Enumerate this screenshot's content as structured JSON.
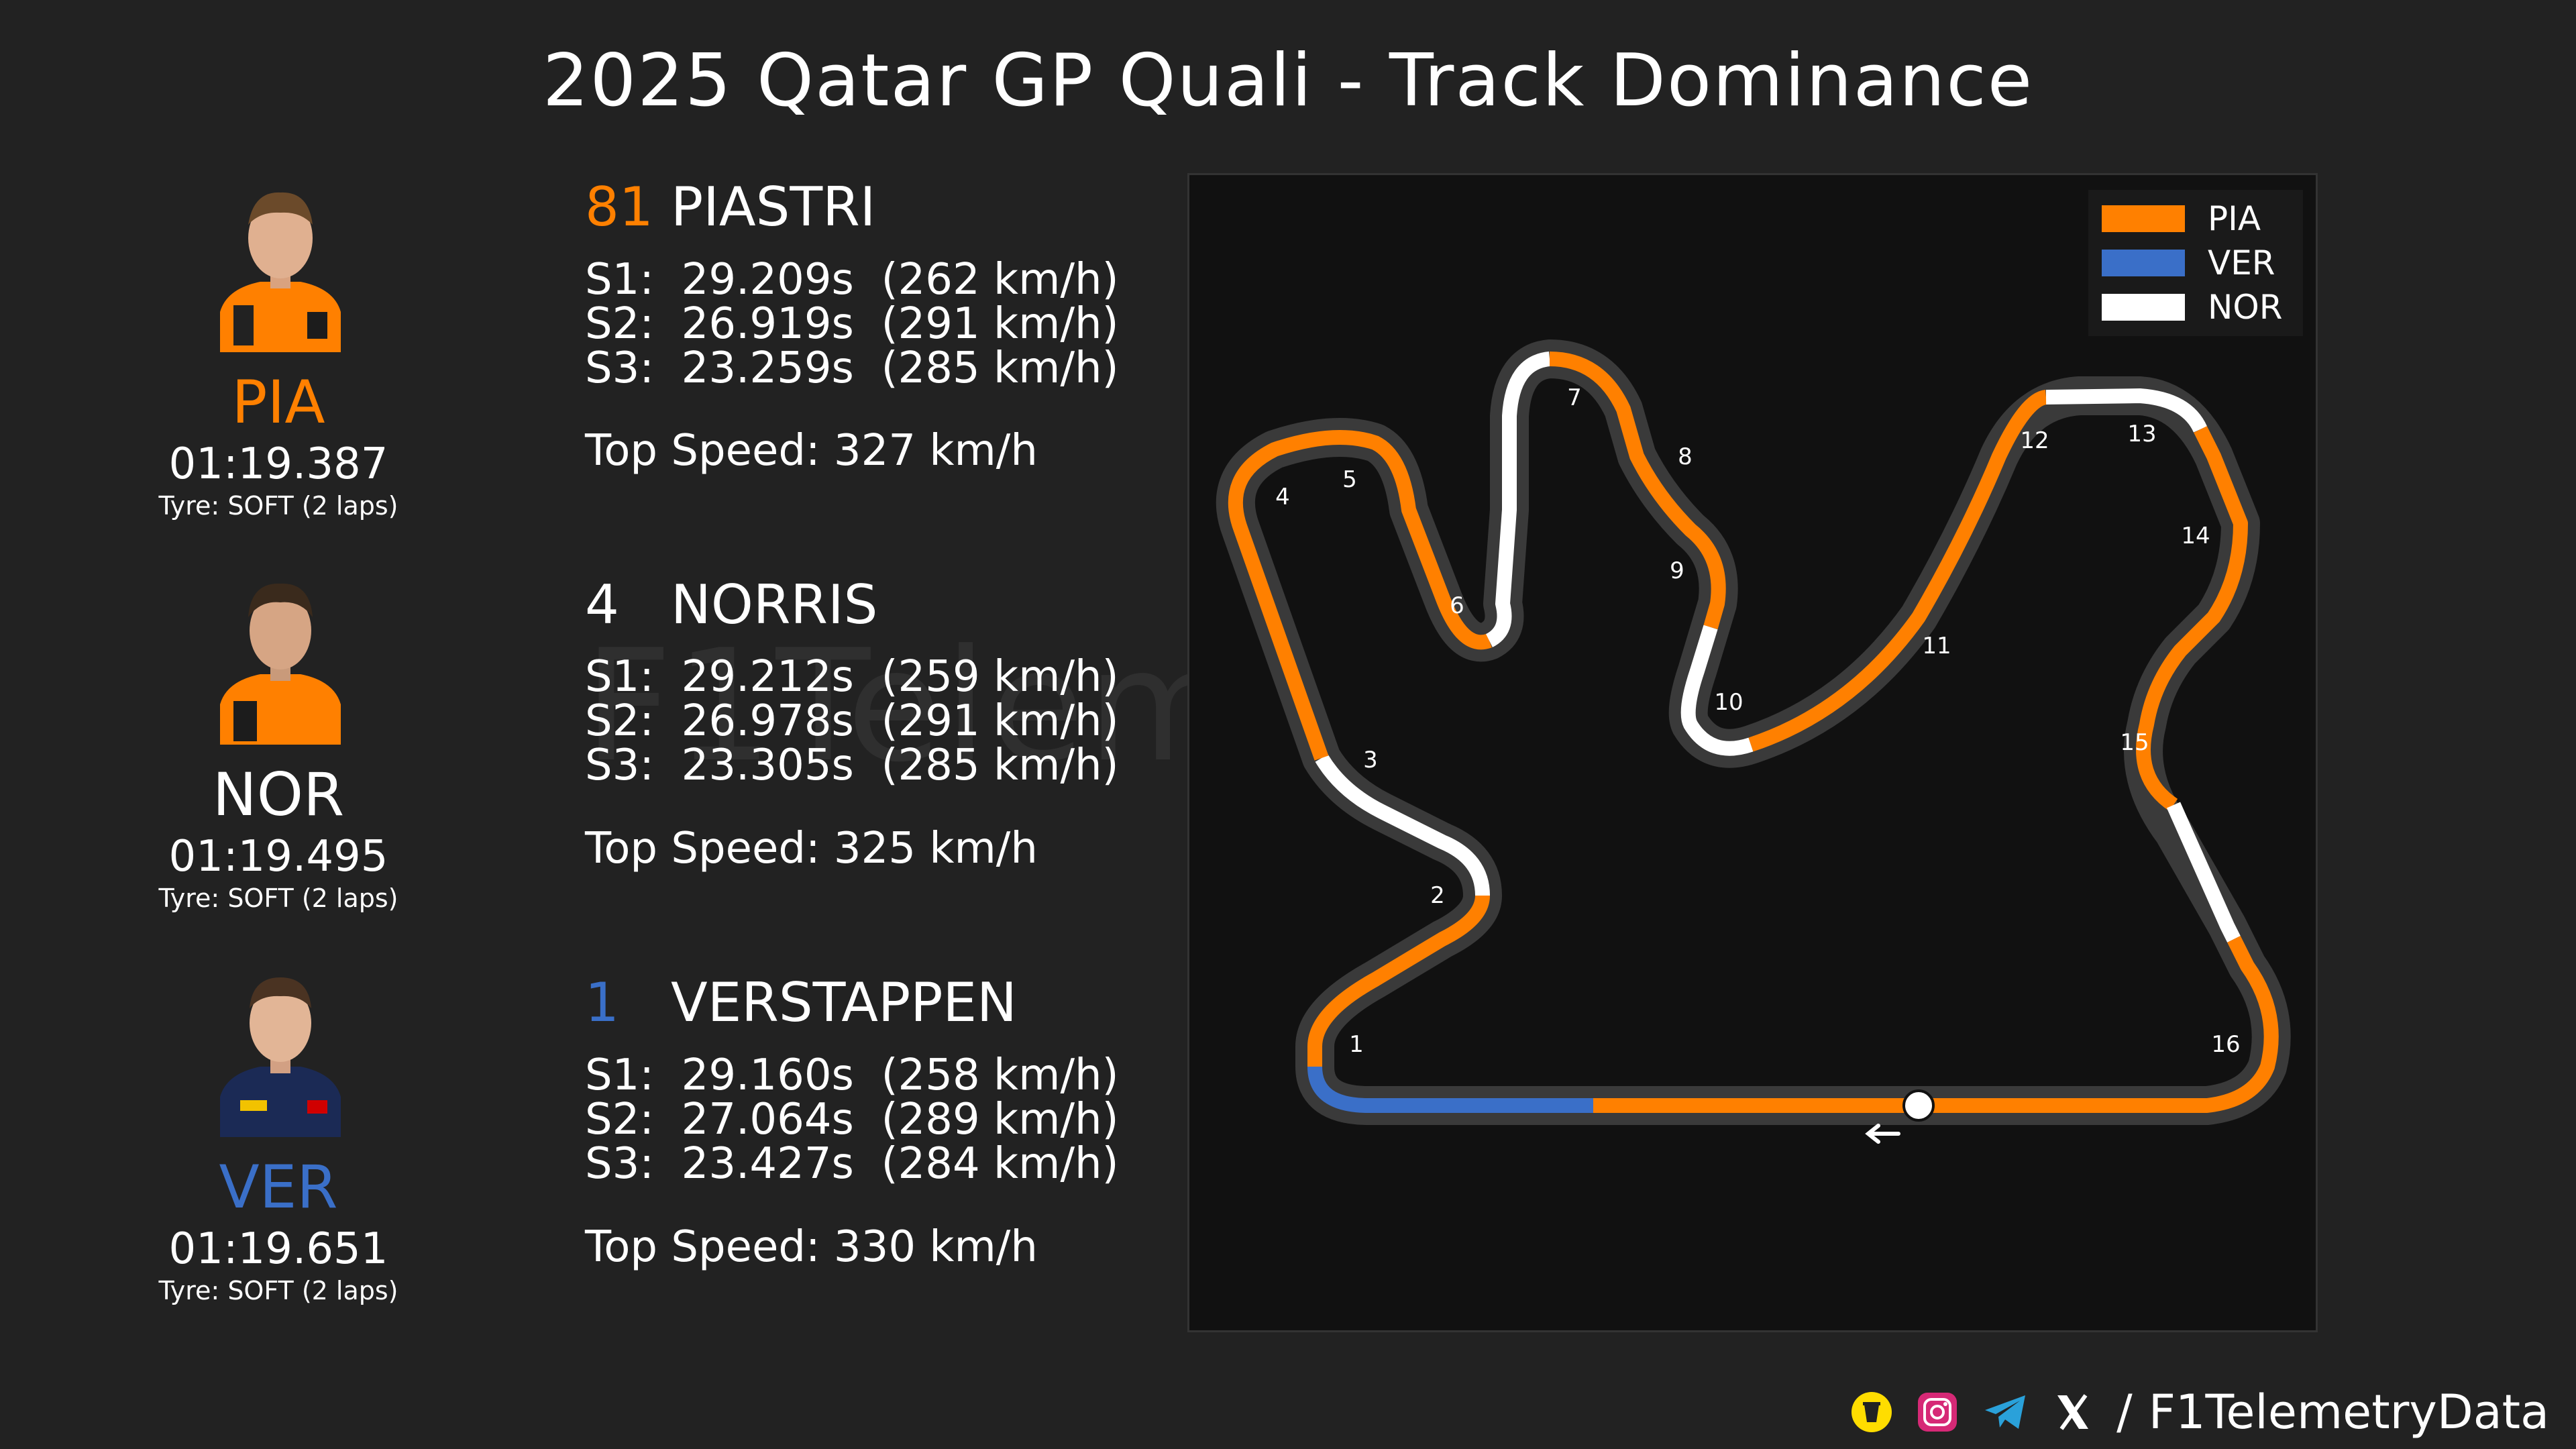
{
  "title": "2025 Qatar GP Quali - Track Dominance",
  "drivers": [
    {
      "code": "PIA",
      "number": "81",
      "name": "PIASTRI",
      "lap_time": "01:19.387",
      "tyre": "Tyre: SOFT (2 laps)",
      "color": "#ff8000",
      "s1": "S1:  29.209s  (262 km/h)",
      "s2": "S2:  26.919s  (291 km/h)",
      "s3": "S3:  23.259s  (285 km/h)",
      "top_speed": "Top Speed: 327 km/h"
    },
    {
      "code": "NOR",
      "number": "4",
      "name": "NORRIS",
      "lap_time": "01:19.495",
      "tyre": "Tyre: SOFT (2 laps)",
      "color": "#ffffff",
      "s1": "S1:  29.212s  (259 km/h)",
      "s2": "S2:  26.978s  (291 km/h)",
      "s3": "S3:  23.305s  (285 km/h)",
      "top_speed": "Top Speed: 325 km/h"
    },
    {
      "code": "VER",
      "number": "1",
      "name": "VERSTAPPEN",
      "lap_time": "01:19.651",
      "tyre": "Tyre: SOFT (2 laps)",
      "color": "#3a6fc8",
      "s1": "S1:  29.160s  (258 km/h)",
      "s2": "S2:  27.064s  (289 km/h)",
      "s3": "S3:  23.427s  (284 km/h)",
      "top_speed": "Top Speed: 330 km/h"
    }
  ],
  "legend": [
    {
      "label": "PIA",
      "color": "#ff8000"
    },
    {
      "label": "VER",
      "color": "#3a6fc8"
    },
    {
      "label": "NOR",
      "color": "#ffffff"
    }
  ],
  "corners": [
    "1",
    "2",
    "3",
    "4",
    "5",
    "6",
    "7",
    "8",
    "9",
    "10",
    "11",
    "12",
    "13",
    "14",
    "15",
    "16"
  ],
  "watermark": "F1TelemetryData",
  "footer": {
    "text": "F1TelemetryData",
    "separator": "/",
    "icons": [
      "buymeacoffee-icon",
      "instagram-icon",
      "telegram-icon",
      "x-icon"
    ]
  }
}
